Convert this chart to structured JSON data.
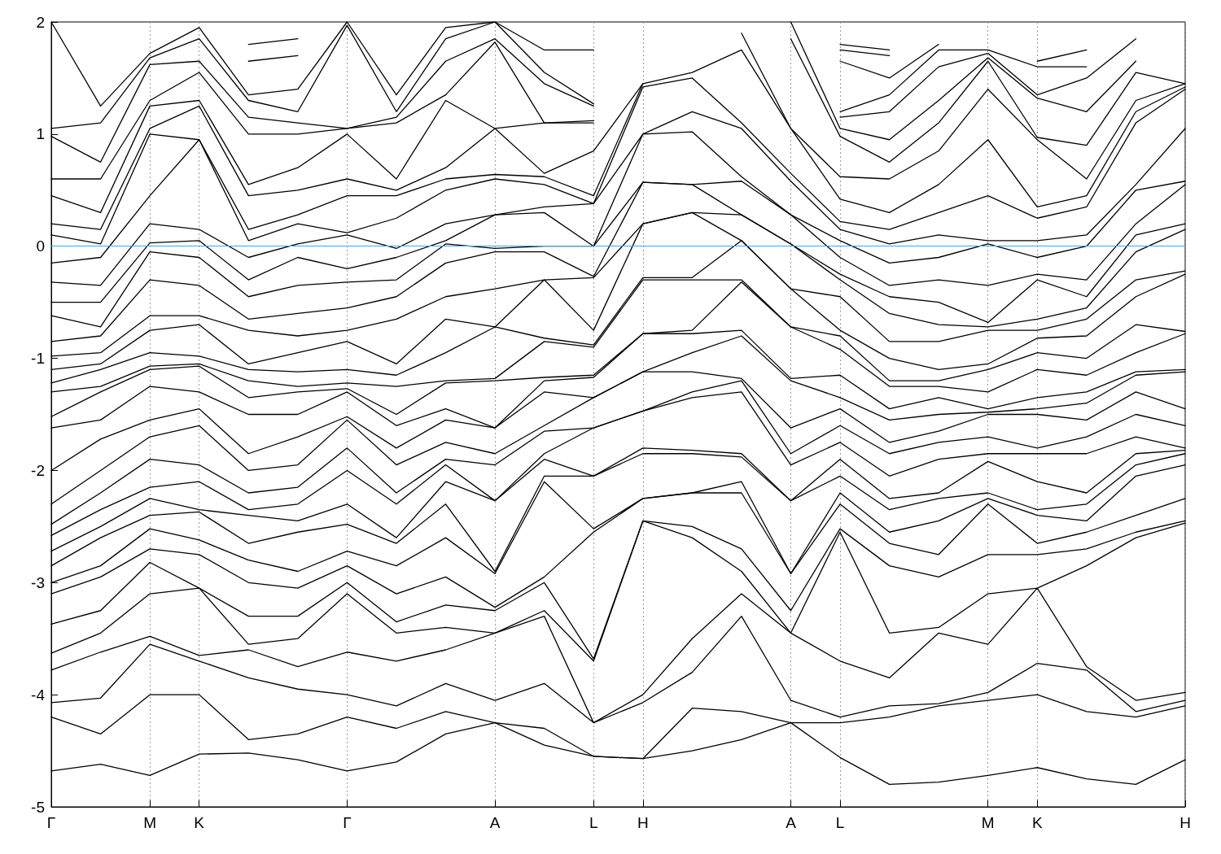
{
  "chart_data": {
    "type": "line",
    "categories": [
      "Γ",
      null,
      "M",
      "K",
      null,
      null,
      "Γ",
      null,
      null,
      "A",
      null,
      "L",
      "H",
      null,
      null,
      "A",
      "L",
      null,
      null,
      "M",
      "K",
      null,
      null,
      "H"
    ],
    "ylim": [
      -5,
      2
    ],
    "yticks": [
      -5,
      -4,
      -3,
      -2,
      -1,
      0,
      1,
      2
    ],
    "grid": "x",
    "marker": "none",
    "line_style": "solid",
    "ref_lines": [
      {
        "axis": "y",
        "value": 0,
        "color": "#4aa3df"
      }
    ],
    "series": [
      {
        "color": "#000000",
        "values": [
          -4.68,
          -4.62,
          -4.72,
          -4.53,
          -4.52,
          -4.58,
          -4.68,
          -4.6,
          -4.35,
          -4.25,
          -4.45,
          -4.55,
          -4.57,
          -4.5,
          -4.4,
          -4.25,
          -4.56,
          -4.8,
          -4.78,
          -4.72,
          -4.65,
          -4.75,
          -4.8,
          -4.58
        ]
      },
      {
        "color": "#000000",
        "values": [
          -4.2,
          -4.35,
          -4.0,
          -4.0,
          -4.4,
          -4.35,
          -4.2,
          -4.3,
          -4.15,
          -4.25,
          -4.3,
          -4.55,
          -4.57,
          -4.12,
          -4.15,
          -4.25,
          -4.25,
          -4.2,
          -4.1,
          -4.05,
          -4.0,
          -4.15,
          -4.2,
          -4.1
        ]
      },
      {
        "color": "#000000",
        "values": [
          -4.07,
          -4.03,
          -3.55,
          -3.7,
          -3.85,
          -3.95,
          -4.0,
          -4.1,
          -3.9,
          -4.05,
          -3.9,
          -4.25,
          -4.07,
          -3.8,
          -3.3,
          -4.05,
          -4.2,
          -4.1,
          -4.08,
          -3.98,
          -3.72,
          -3.78,
          -4.15,
          -4.05
        ]
      },
      {
        "color": "#000000",
        "values": [
          -3.78,
          -3.62,
          -3.48,
          -3.65,
          -3.6,
          -3.75,
          -3.62,
          -3.7,
          -3.6,
          -3.45,
          -3.3,
          -4.25,
          -4.0,
          -3.5,
          -3.1,
          -3.45,
          -3.7,
          -3.85,
          -3.45,
          -3.55,
          -3.05,
          -3.75,
          -4.05,
          -3.98
        ]
      },
      {
        "color": "#000000",
        "values": [
          -3.63,
          -3.45,
          -3.1,
          -3.05,
          -3.55,
          -3.5,
          -3.1,
          -3.45,
          -3.4,
          -3.45,
          -3.25,
          -3.7,
          -2.45,
          -2.6,
          -2.9,
          -3.45,
          -2.55,
          -3.45,
          -3.4,
          -3.1,
          -3.05,
          -2.85,
          -2.6,
          -2.47
        ]
      },
      {
        "color": "#000000",
        "values": [
          -3.37,
          -3.25,
          -2.82,
          -3.05,
          -3.3,
          -3.3,
          -3.0,
          -3.35,
          -3.2,
          -3.25,
          -3.0,
          -3.68,
          -2.45,
          -2.5,
          -2.7,
          -3.25,
          -2.52,
          -2.85,
          -2.95,
          -2.75,
          -2.75,
          -2.7,
          -2.55,
          -2.45
        ]
      },
      {
        "color": "#000000",
        "values": [
          -3.1,
          -2.95,
          -2.7,
          -2.75,
          -3.0,
          -3.05,
          -2.85,
          -3.1,
          -2.95,
          -3.22,
          -2.95,
          -2.55,
          -2.25,
          -2.2,
          -2.2,
          -2.92,
          -2.3,
          -2.65,
          -2.75,
          -2.3,
          -2.65,
          -2.55,
          -2.4,
          -2.25
        ]
      },
      {
        "color": "#000000",
        "values": [
          -3.0,
          -2.85,
          -2.52,
          -2.62,
          -2.8,
          -2.9,
          -2.72,
          -2.85,
          -2.6,
          -2.92,
          -2.1,
          -2.52,
          -2.25,
          -2.2,
          -2.1,
          -2.92,
          -2.2,
          -2.55,
          -2.45,
          -2.25,
          -2.4,
          -2.45,
          -2.05,
          -1.95
        ]
      },
      {
        "color": "#000000",
        "values": [
          -2.85,
          -2.6,
          -2.4,
          -2.37,
          -2.65,
          -2.55,
          -2.48,
          -2.65,
          -2.3,
          -2.9,
          -2.05,
          -2.05,
          -1.85,
          -1.85,
          -1.88,
          -2.27,
          -2.05,
          -2.35,
          -2.25,
          -2.2,
          -2.35,
          -2.3,
          -1.95,
          -1.85
        ]
      },
      {
        "color": "#000000",
        "values": [
          -2.72,
          -2.5,
          -2.25,
          -2.35,
          -2.4,
          -2.45,
          -2.3,
          -2.6,
          -2.1,
          -2.27,
          -1.9,
          -2.05,
          -1.8,
          -1.82,
          -1.85,
          -2.27,
          -1.9,
          -2.25,
          -2.2,
          -1.92,
          -2.1,
          -2.2,
          -1.85,
          -1.82
        ]
      },
      {
        "color": "#000000",
        "values": [
          -2.58,
          -2.35,
          -2.15,
          -2.1,
          -2.35,
          -2.3,
          -2.0,
          -2.3,
          -1.95,
          -2.27,
          -1.85,
          -1.62,
          -1.47,
          -1.35,
          -1.3,
          -1.95,
          -1.75,
          -2.05,
          -1.9,
          -1.85,
          -1.85,
          -1.85,
          -1.7,
          -1.8
        ]
      },
      {
        "color": "#000000",
        "values": [
          -2.48,
          -2.2,
          -1.9,
          -1.95,
          -2.2,
          -2.15,
          -1.8,
          -2.2,
          -1.9,
          -1.95,
          -1.65,
          -1.62,
          -1.47,
          -1.3,
          -1.2,
          -1.85,
          -1.6,
          -1.85,
          -1.75,
          -1.7,
          -1.8,
          -1.7,
          -1.5,
          -1.6
        ]
      },
      {
        "color": "#000000",
        "values": [
          -2.3,
          -2.0,
          -1.7,
          -1.6,
          -2.0,
          -1.95,
          -1.55,
          -1.95,
          -1.75,
          -1.85,
          -1.6,
          -1.35,
          -1.12,
          -1.12,
          -1.18,
          -1.62,
          -1.45,
          -1.75,
          -1.65,
          -1.5,
          -1.5,
          -1.55,
          -1.3,
          -1.45
        ]
      },
      {
        "color": "#000000",
        "values": [
          -2.0,
          -1.72,
          -1.55,
          -1.45,
          -1.85,
          -1.7,
          -1.52,
          -1.8,
          -1.55,
          -1.62,
          -1.3,
          -1.35,
          -1.12,
          -0.95,
          -0.8,
          -1.2,
          -1.35,
          -1.55,
          -1.5,
          -1.48,
          -1.45,
          -1.4,
          -1.15,
          -1.12
        ]
      },
      {
        "color": "#000000",
        "values": [
          -1.62,
          -1.55,
          -1.25,
          -1.3,
          -1.5,
          -1.5,
          -1.3,
          -1.6,
          -1.45,
          -1.62,
          -1.2,
          -1.17,
          -0.78,
          -0.78,
          -0.75,
          -1.18,
          -1.15,
          -1.45,
          -1.35,
          -1.45,
          -1.35,
          -1.3,
          -1.12,
          -1.1
        ]
      },
      {
        "color": "#000000",
        "values": [
          -1.52,
          -1.3,
          -1.1,
          -1.07,
          -1.35,
          -1.3,
          -1.27,
          -1.5,
          -1.22,
          -1.2,
          -1.17,
          -1.15,
          -0.78,
          -0.75,
          -0.32,
          -0.72,
          -0.92,
          -1.25,
          -1.25,
          -1.3,
          -1.1,
          -1.15,
          -0.95,
          -0.78
        ]
      },
      {
        "color": "#000000",
        "values": [
          -1.3,
          -1.25,
          -1.07,
          -1.05,
          -1.2,
          -1.25,
          -1.22,
          -1.25,
          -1.2,
          -1.18,
          -0.85,
          -0.9,
          -0.3,
          -0.3,
          -0.3,
          -0.72,
          -0.8,
          -1.2,
          -1.2,
          -1.1,
          -0.95,
          -1.0,
          -0.7,
          -0.76
        ]
      },
      {
        "color": "#000000",
        "values": [
          -1.22,
          -1.1,
          -0.95,
          -0.98,
          -1.1,
          -1.12,
          -1.1,
          -1.15,
          -0.95,
          -0.72,
          -0.82,
          -0.88,
          -0.28,
          -0.28,
          0.05,
          -0.38,
          -0.75,
          -1.0,
          -1.1,
          -1.05,
          -0.82,
          -0.8,
          -0.45,
          -0.25
        ]
      },
      {
        "color": "#000000",
        "values": [
          -1.1,
          -1.05,
          -0.75,
          -0.7,
          -1.05,
          -0.95,
          -0.85,
          -1.05,
          -0.65,
          -0.72,
          -0.3,
          -0.75,
          0.2,
          0.3,
          0.05,
          -0.38,
          -0.45,
          -0.85,
          -0.85,
          -0.75,
          -0.75,
          -0.65,
          -0.3,
          -0.22
        ]
      },
      {
        "color": "#000000",
        "values": [
          -0.98,
          -0.95,
          -0.62,
          -0.62,
          -0.75,
          -0.8,
          -0.75,
          -0.65,
          -0.45,
          -0.38,
          -0.3,
          -0.28,
          0.2,
          0.3,
          0.28,
          0.02,
          -0.3,
          -0.6,
          -0.7,
          -0.72,
          -0.65,
          -0.55,
          -0.05,
          0.15
        ]
      },
      {
        "color": "#000000",
        "values": [
          -0.85,
          -0.8,
          -0.3,
          -0.35,
          -0.65,
          -0.6,
          -0.55,
          -0.45,
          -0.15,
          -0.05,
          -0.05,
          -0.27,
          0.57,
          0.55,
          0.28,
          0.02,
          -0.25,
          -0.45,
          -0.5,
          -0.68,
          -0.3,
          -0.45,
          0.1,
          0.2
        ]
      },
      {
        "color": "#000000",
        "values": [
          -0.62,
          -0.72,
          -0.05,
          -0.1,
          -0.45,
          -0.35,
          -0.32,
          -0.3,
          0.02,
          -0.02,
          0.0,
          0.0,
          0.57,
          0.55,
          0.58,
          0.28,
          -0.1,
          -0.35,
          -0.3,
          -0.35,
          -0.25,
          -0.3,
          0.2,
          0.55
        ]
      },
      {
        "color": "#000000",
        "values": [
          -0.5,
          -0.5,
          0.03,
          0.05,
          -0.3,
          -0.1,
          -0.2,
          -0.1,
          0.05,
          0.28,
          0.3,
          0.0,
          1.0,
          1.02,
          0.62,
          0.28,
          0.05,
          -0.15,
          -0.1,
          0.02,
          -0.1,
          0.0,
          0.5,
          0.58
        ]
      },
      {
        "color": "#000000",
        "values": [
          -0.32,
          -0.35,
          0.2,
          0.15,
          -0.1,
          0.02,
          0.1,
          -0.02,
          0.2,
          0.28,
          0.35,
          0.38,
          1.0,
          1.2,
          1.05,
          0.58,
          0.15,
          0.02,
          0.1,
          0.05,
          0.05,
          0.1,
          0.55,
          1.05
        ]
      },
      {
        "color": "#000000",
        "values": [
          -0.15,
          -0.1,
          0.45,
          0.95,
          0.05,
          0.2,
          0.12,
          0.25,
          0.5,
          0.6,
          0.55,
          0.38,
          1.42,
          1.5,
          1.1,
          0.65,
          0.22,
          0.15,
          0.3,
          0.45,
          0.25,
          0.35,
          1.1,
          1.4
        ]
      },
      {
        "color": "#000000",
        "values": [
          0.1,
          0.02,
          1.0,
          0.95,
          0.15,
          0.28,
          0.45,
          0.45,
          0.6,
          0.64,
          0.62,
          0.45,
          1.45,
          1.55,
          1.75,
          1.05,
          0.42,
          0.3,
          0.55,
          0.95,
          0.35,
          0.45,
          1.2,
          1.42
        ]
      },
      {
        "color": "#000000",
        "values": [
          0.2,
          0.15,
          1.05,
          1.25,
          0.45,
          0.5,
          0.6,
          0.5,
          0.7,
          1.05,
          0.65,
          0.85,
          1.45,
          null,
          1.9,
          1.05,
          0.62,
          0.6,
          0.85,
          1.4,
          0.95,
          0.6,
          1.3,
          1.45
        ]
      },
      {
        "color": "#000000",
        "values": [
          0.45,
          0.3,
          1.25,
          1.3,
          0.55,
          0.7,
          1.0,
          0.6,
          1.3,
          1.05,
          1.1,
          1.1,
          null,
          null,
          null,
          1.85,
          0.98,
          0.75,
          1.1,
          1.65,
          0.97,
          0.9,
          1.55,
          1.45
        ]
      },
      {
        "color": "#000000",
        "values": [
          0.6,
          0.6,
          1.3,
          1.55,
          1.0,
          1.0,
          1.05,
          1.1,
          1.35,
          1.82,
          1.1,
          1.12,
          null,
          null,
          null,
          2.0,
          1.05,
          0.95,
          1.3,
          1.68,
          1.32,
          1.2,
          1.65,
          null
        ]
      },
      {
        "color": "#000000",
        "values": [
          0.98,
          0.75,
          1.62,
          1.65,
          1.15,
          1.1,
          1.05,
          1.15,
          1.65,
          1.85,
          1.45,
          1.25,
          null,
          null,
          null,
          null,
          1.15,
          1.2,
          1.6,
          1.72,
          1.35,
          1.5,
          1.85,
          null
        ]
      },
      {
        "color": "#000000",
        "values": [
          1.05,
          1.1,
          1.68,
          1.85,
          1.3,
          1.2,
          1.97,
          1.2,
          1.85,
          2.0,
          1.55,
          1.27,
          null,
          null,
          null,
          null,
          1.2,
          1.35,
          1.75,
          1.75,
          1.6,
          1.6,
          null,
          null
        ]
      },
      {
        "color": "#000000",
        "values": [
          2.0,
          1.25,
          1.72,
          1.95,
          1.35,
          1.4,
          2.0,
          1.35,
          1.95,
          2.0,
          1.75,
          1.75,
          null,
          null,
          null,
          null,
          1.65,
          1.5,
          1.8,
          null,
          1.65,
          1.75,
          null,
          null
        ]
      },
      {
        "color": "#000000",
        "values": [
          null,
          null,
          null,
          null,
          1.65,
          1.7,
          null,
          null,
          null,
          null,
          null,
          null,
          null,
          null,
          null,
          null,
          1.75,
          1.7,
          null,
          null,
          null,
          null,
          null,
          null
        ]
      },
      {
        "color": "#000000",
        "values": [
          null,
          null,
          null,
          null,
          1.8,
          1.85,
          null,
          null,
          null,
          null,
          null,
          null,
          null,
          null,
          null,
          null,
          1.8,
          1.75,
          null,
          null,
          null,
          null,
          null,
          null
        ]
      }
    ]
  }
}
